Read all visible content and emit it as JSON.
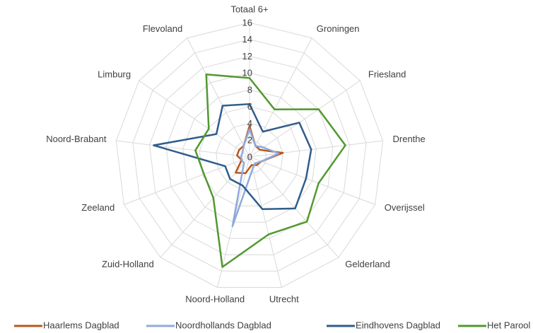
{
  "chart_data": {
    "type": "radar",
    "categories": [
      "Totaal 6+",
      "Groningen",
      "Friesland",
      "Drenthe",
      "Overijssel",
      "Gelderland",
      "Utrecht",
      "Noord-Holland",
      "Zuid-Holland",
      "Zeeland",
      "Noord-Brabant",
      "Limburg",
      "Flevoland"
    ],
    "ylim": [
      0,
      16
    ],
    "yticks": [
      0,
      2,
      4,
      6,
      8,
      10,
      12,
      14,
      16
    ],
    "grid": true,
    "legend": "bottom",
    "series": [
      {
        "name": "Haarlems Dagblad",
        "color": "#b8581e",
        "values": [
          3.7,
          1.5,
          1.5,
          4,
          1.5,
          1.3,
          1,
          2,
          2.5,
          1,
          1.5,
          1.5,
          1.5
        ]
      },
      {
        "name": "Noordhollands Dagblad",
        "color": "#8faadc",
        "values": [
          3.3,
          1.5,
          2,
          3.5,
          1.5,
          1,
          1.5,
          8.5,
          1,
          1,
          1,
          1,
          1.5
        ]
      },
      {
        "name": "Eindhovens Dagblad",
        "color": "#2f5d8c",
        "values": [
          6.3,
          3.4,
          7.2,
          7.4,
          7.2,
          8.2,
          6.4,
          3.5,
          3.5,
          3.1,
          11.5,
          4.8,
          6.9
        ]
      },
      {
        "name": "Het Parool",
        "color": "#53982f",
        "values": [
          9.4,
          6.4,
          10,
          11.5,
          8.8,
          10.3,
          9.5,
          13.5,
          6.5,
          5.8,
          6.5,
          5.9,
          11.1
        ]
      }
    ]
  }
}
